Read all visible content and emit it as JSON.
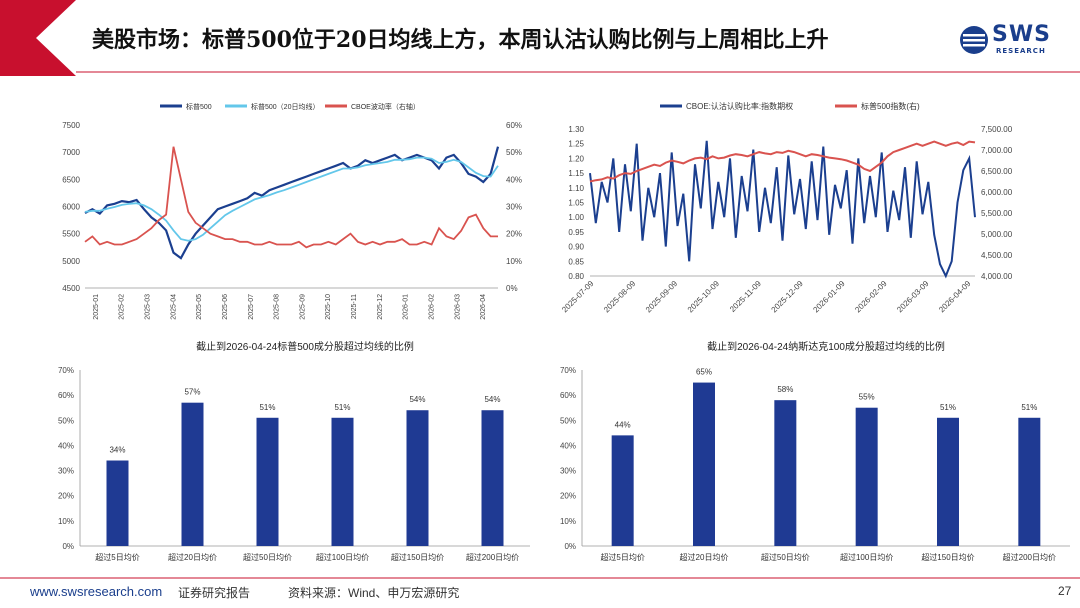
{
  "page": {
    "title": "美股市场：标普500位于20日均线上方，本周认沽认购比例与上周相比上升",
    "logo_text": "SWS",
    "logo_sub": "RESEARCH",
    "footer_url": "www.swsresearch.com",
    "footer_label": "证券研究报告",
    "footer_source": "资料来源：Wind、申万宏源研究",
    "page_number": "27"
  },
  "colors": {
    "navy": "#1b3f8f",
    "light_blue": "#63c7ea",
    "red": "#d9534f",
    "header_red": "#c8102e",
    "bar": "#1f3a93"
  },
  "chart_data": [
    {
      "type": "line",
      "title": "",
      "x_ticks": [
        "2025-01",
        "2025-02",
        "2025-03",
        "2025-04",
        "2025-05",
        "2025-06",
        "2025-07",
        "2025-08",
        "2025-09",
        "2025-10",
        "2025-11",
        "2025-12",
        "2026-01",
        "2026-02",
        "2026-03",
        "2026-04"
      ],
      "ylim_left": [
        4500,
        7500
      ],
      "yticks_left": [
        "4500",
        "5000",
        "5500",
        "6000",
        "6500",
        "7000",
        "7500"
      ],
      "ylim_right": [
        0,
        60
      ],
      "yticks_right": [
        "0%",
        "10%",
        "20%",
        "30%",
        "40%",
        "50%",
        "60%"
      ],
      "series": [
        {
          "name": "标普500",
          "axis": "left",
          "values": [
            5880,
            5950,
            5870,
            6020,
            6050,
            6100,
            6080,
            6120,
            5950,
            5800,
            5700,
            5560,
            5150,
            5050,
            5300,
            5500,
            5650,
            5800,
            5950,
            6000,
            6050,
            6100,
            6150,
            6250,
            6200,
            6300,
            6350,
            6400,
            6450,
            6500,
            6550,
            6600,
            6650,
            6700,
            6750,
            6800,
            6700,
            6750,
            6850,
            6800,
            6850,
            6900,
            6950,
            6850,
            6900,
            6950,
            6900,
            6850,
            6700,
            6900,
            6950,
            6800,
            6600,
            6550,
            6450,
            6600,
            7100
          ]
        },
        {
          "name": "标普500（20日均线）",
          "axis": "left",
          "values": [
            5900,
            5920,
            5920,
            5960,
            5990,
            6030,
            6050,
            6060,
            6020,
            5950,
            5850,
            5740,
            5560,
            5400,
            5370,
            5400,
            5480,
            5600,
            5720,
            5840,
            5920,
            5990,
            6060,
            6130,
            6170,
            6210,
            6260,
            6300,
            6350,
            6400,
            6450,
            6500,
            6550,
            6600,
            6650,
            6700,
            6700,
            6720,
            6760,
            6780,
            6800,
            6820,
            6860,
            6860,
            6870,
            6900,
            6900,
            6880,
            6800,
            6820,
            6860,
            6820,
            6720,
            6620,
            6560,
            6550,
            6750
          ]
        },
        {
          "name": "CBOE波动率（右轴）",
          "axis": "right",
          "values": [
            17,
            19,
            16,
            17,
            16,
            16,
            17,
            18,
            20,
            22,
            25,
            27,
            52,
            40,
            28,
            24,
            22,
            20,
            19,
            18,
            18,
            17,
            17,
            16,
            16,
            17,
            16,
            16,
            16,
            17,
            15,
            16,
            16,
            17,
            16,
            18,
            20,
            17,
            16,
            17,
            16,
            17,
            17,
            18,
            16,
            16,
            17,
            16,
            22,
            19,
            18,
            21,
            26,
            27,
            22,
            19,
            19
          ]
        }
      ]
    },
    {
      "type": "line",
      "title": "",
      "x_ticks": [
        "2025-07-09",
        "2025-08-09",
        "2025-09-09",
        "2025-10-09",
        "2025-11-09",
        "2025-12-09",
        "2026-01-09",
        "2026-02-09",
        "2026-03-09",
        "2026-04-09"
      ],
      "ylim_left": [
        0.8,
        1.3
      ],
      "yticks_left": [
        "0.80",
        "0.85",
        "0.90",
        "0.95",
        "1.00",
        "1.05",
        "1.10",
        "1.15",
        "1.20",
        "1.25",
        "1.30"
      ],
      "ylim_right": [
        4000,
        7500
      ],
      "yticks_right": [
        "4,000.00",
        "4,500.00",
        "5,000.00",
        "5,500.00",
        "6,000.00",
        "6,500.00",
        "7,000.00",
        "7,500.00"
      ],
      "series": [
        {
          "name": "CBOE:认沽认购比率:指数期权",
          "axis": "left",
          "values": [
            1.15,
            0.98,
            1.12,
            1.05,
            1.2,
            0.95,
            1.18,
            1.02,
            1.25,
            0.92,
            1.1,
            1.0,
            1.15,
            0.9,
            1.22,
            0.97,
            1.08,
            0.85,
            1.18,
            1.03,
            1.26,
            0.96,
            1.12,
            1.0,
            1.2,
            0.93,
            1.14,
            1.02,
            1.23,
            0.95,
            1.1,
            0.98,
            1.17,
            0.92,
            1.21,
            1.01,
            1.13,
            0.96,
            1.19,
            0.99,
            1.24,
            0.94,
            1.11,
            1.03,
            1.16,
            0.91,
            1.2,
            0.98,
            1.14,
            1.0,
            1.22,
            0.95,
            1.09,
            0.99,
            1.17,
            0.93,
            1.19,
            1.01,
            1.12,
            0.94,
            0.84,
            0.8,
            0.85,
            1.05,
            1.16,
            1.2,
            1.0
          ]
        },
        {
          "name": "标普500指数(右)",
          "axis": "right",
          "values": [
            6250,
            6280,
            6300,
            6350,
            6320,
            6400,
            6450,
            6430,
            6500,
            6550,
            6600,
            6650,
            6620,
            6700,
            6750,
            6720,
            6680,
            6750,
            6800,
            6820,
            6780,
            6850,
            6800,
            6820,
            6870,
            6900,
            6880,
            6850,
            6900,
            6950,
            6920,
            6900,
            6950,
            6930,
            6980,
            6950,
            6900,
            6850,
            6900,
            6880,
            6850,
            6820,
            6800,
            6780,
            6750,
            6700,
            6650,
            6550,
            6500,
            6600,
            6700,
            6850,
            6950,
            7000,
            7050,
            7100,
            7150,
            7100,
            7150,
            7200,
            7150,
            7100,
            7150,
            7180,
            7120,
            7200,
            7180
          ]
        }
      ]
    },
    {
      "type": "bar",
      "title": "截止到2026-04-24标普500成分股超过均线的比例",
      "categories": [
        "超过5日均价",
        "超过20日均价",
        "超过50日均价",
        "超过100日均价",
        "超过150日均价",
        "超过200日均价"
      ],
      "values": [
        34,
        57,
        51,
        51,
        54,
        54
      ],
      "labels": [
        "34%",
        "57%",
        "51%",
        "51%",
        "54%",
        "54%"
      ],
      "ylim": [
        0,
        70
      ],
      "yticks": [
        "0%",
        "10%",
        "20%",
        "30%",
        "40%",
        "50%",
        "60%",
        "70%"
      ]
    },
    {
      "type": "bar",
      "title": "截止到2026-04-24纳斯达克100成分股超过均线的比例",
      "categories": [
        "超过5日均价",
        "超过20日均价",
        "超过50日均价",
        "超过100日均价",
        "超过150日均价",
        "超过200日均价"
      ],
      "values": [
        44,
        65,
        58,
        55,
        51,
        51
      ],
      "labels": [
        "44%",
        "65%",
        "58%",
        "55%",
        "51%",
        "51%"
      ],
      "ylim": [
        0,
        70
      ],
      "yticks": [
        "0%",
        "10%",
        "20%",
        "30%",
        "40%",
        "50%",
        "60%",
        "70%"
      ]
    }
  ]
}
